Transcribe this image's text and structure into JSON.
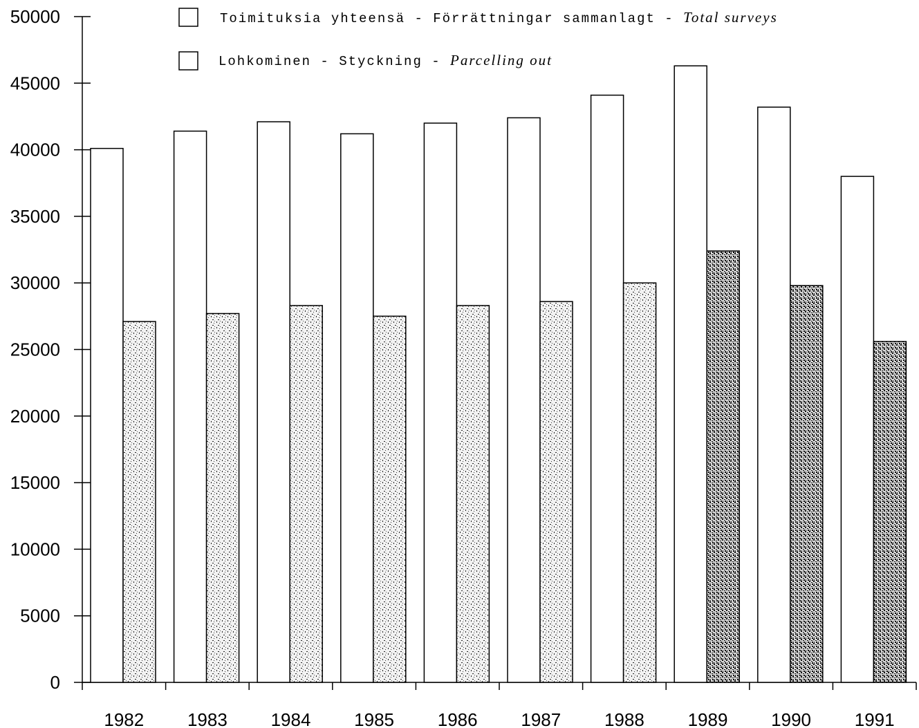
{
  "chart_data": {
    "type": "bar",
    "title": "",
    "xlabel": "",
    "ylabel": "",
    "categories": [
      "1982",
      "1983",
      "1984",
      "1985",
      "1986",
      "1987",
      "1988",
      "1989",
      "1990",
      "1991"
    ],
    "series": [
      {
        "name": "Toimituksia yhteensä - Förrättningar sammanlagt - Total surveys",
        "name_parts": [
          "Toimituksia yhteensä - Förrättningar sammanlagt - ",
          "Total surveys"
        ],
        "values": [
          40100,
          41400,
          42100,
          41200,
          42000,
          42400,
          44100,
          46300,
          43200,
          38000
        ],
        "fill": "#ffffff",
        "stroke": "#000000"
      },
      {
        "name": "Lohkominen - Styckning - Parcelling out",
        "name_parts": [
          "Lohkominen - Styckning - ",
          "Parcelling out"
        ],
        "values": [
          27100,
          27700,
          28300,
          27500,
          28300,
          28600,
          30000,
          32400,
          29800,
          25600
        ],
        "fill": "stippled-dark",
        "stroke": "#000000"
      }
    ],
    "yticks": [
      "0",
      "5000",
      "10000",
      "15000",
      "20000",
      "25000",
      "30000",
      "35000",
      "40000",
      "45000",
      "50000"
    ],
    "ylim": [
      0,
      50000
    ],
    "grid": false,
    "legend_position": "top"
  }
}
